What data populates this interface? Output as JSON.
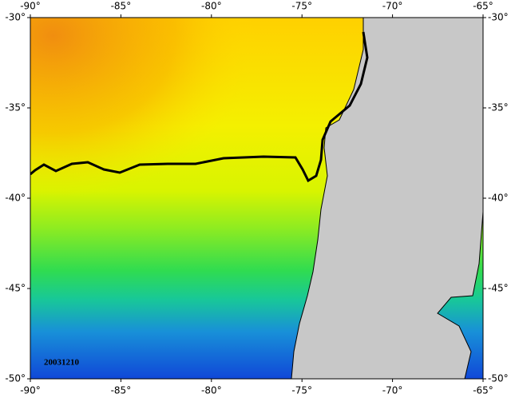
{
  "map": {
    "lon_labels": [
      "-90°",
      "-85°",
      "-80°",
      "-75°",
      "-70°",
      "-65°"
    ],
    "lat_labels": [
      "-30°",
      "-35°",
      "-40°",
      "-45°",
      "-50°"
    ],
    "date_label": "20031210"
  }
}
